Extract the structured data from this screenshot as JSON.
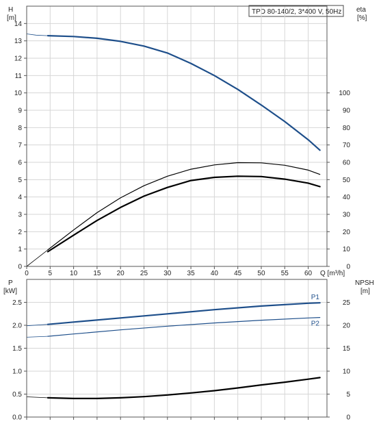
{
  "chart_data": [
    {
      "type": "line",
      "title": "TPD 80-140/2, 3*400 V, 50Hz",
      "xlabel": "Q [m³/h]",
      "x_ticks": [
        0,
        5,
        10,
        15,
        20,
        25,
        30,
        35,
        40,
        45,
        50,
        55,
        60
      ],
      "xlim": [
        0,
        64
      ],
      "left_axis": {
        "label_line1": "H",
        "label_line2": "[m]",
        "ylim": [
          0,
          15
        ],
        "ticks": [
          0,
          1,
          2,
          3,
          4,
          5,
          6,
          7,
          8,
          9,
          10,
          11,
          12,
          13,
          14
        ]
      },
      "right_axis": {
        "label_line1": "eta",
        "label_line2": "[%]",
        "ylim": [
          0,
          150
        ],
        "ticks": [
          0,
          10,
          20,
          30,
          40,
          50,
          60,
          70,
          80,
          90,
          100
        ]
      },
      "grid": true,
      "series": [
        {
          "color": "#1d4e8a",
          "axis": "left",
          "x_extended": [
            0,
            2,
            4.5
          ],
          "y_extended": [
            13.4,
            13.33,
            13.3
          ],
          "x": [
            4.5,
            10,
            15,
            20,
            25,
            30,
            35,
            40,
            45,
            50,
            55,
            60,
            62.5
          ],
          "y": [
            13.3,
            13.25,
            13.15,
            12.97,
            12.7,
            12.3,
            11.7,
            11.0,
            10.2,
            9.3,
            8.35,
            7.3,
            6.7
          ]
        },
        {
          "color": "#000000",
          "axis": "right",
          "x_extended": [
            0,
            4.5
          ],
          "y_extended": [
            0,
            9.5
          ],
          "x": [
            4.5,
            10,
            15,
            20,
            25,
            30,
            35,
            40,
            45,
            50,
            55,
            60,
            62.5
          ],
          "y": [
            9.5,
            21,
            31,
            39.5,
            46.5,
            52,
            56,
            58.5,
            59.8,
            59.7,
            58.3,
            55.5,
            53
          ]
        },
        {
          "color": "#000000",
          "axis": "right",
          "x": [
            4.5,
            10,
            15,
            20,
            25,
            30,
            35,
            40,
            45,
            50,
            55,
            60,
            62.5
          ],
          "y": [
            8.5,
            18,
            26.5,
            34,
            40.5,
            45.5,
            49.5,
            51.3,
            52,
            51.8,
            50.3,
            48,
            46
          ]
        }
      ]
    },
    {
      "type": "line",
      "x_ticks": [
        0,
        5,
        10,
        15,
        20,
        25,
        30,
        35,
        40,
        45,
        50,
        55,
        60
      ],
      "xlim": [
        0,
        64
      ],
      "left_axis": {
        "label_line1": "P",
        "label_line2": "[kW]",
        "ylim": [
          0,
          3.0
        ],
        "ticks": [
          "0.0",
          "0.5",
          "1.0",
          "1.5",
          "2.0",
          "2.5"
        ]
      },
      "right_axis": {
        "label_line1": "NPSH",
        "label_line2": "[m]",
        "ylim": [
          0,
          30
        ],
        "ticks": [
          0,
          5,
          10,
          15,
          20,
          25
        ]
      },
      "grid": true,
      "series": [
        {
          "name": "P1",
          "color": "#1d4e8a",
          "axis": "left",
          "x_extended": [
            0,
            4.5
          ],
          "y_extended": [
            1.99,
            2.02
          ],
          "x": [
            4.5,
            10,
            20,
            30,
            40,
            50,
            60,
            62.5
          ],
          "y": [
            2.02,
            2.07,
            2.16,
            2.25,
            2.34,
            2.42,
            2.48,
            2.49
          ]
        },
        {
          "name": "P2",
          "color": "#1d4e8a",
          "axis": "left",
          "x_extended": [
            0,
            4.5
          ],
          "y_extended": [
            1.74,
            1.76
          ],
          "x": [
            4.5,
            10,
            20,
            30,
            40,
            50,
            60,
            62.5
          ],
          "y": [
            1.76,
            1.81,
            1.9,
            1.98,
            2.05,
            2.11,
            2.16,
            2.17
          ]
        },
        {
          "color": "#000000",
          "axis": "right",
          "x_extended": [
            0,
            4.5
          ],
          "y_extended": [
            4.4,
            4.2
          ],
          "x": [
            4.5,
            10,
            15,
            20,
            25,
            30,
            35,
            40,
            45,
            50,
            55,
            60,
            62.5
          ],
          "y": [
            4.2,
            4.05,
            4.05,
            4.2,
            4.45,
            4.8,
            5.25,
            5.75,
            6.35,
            7.0,
            7.6,
            8.25,
            8.6
          ]
        }
      ]
    }
  ]
}
